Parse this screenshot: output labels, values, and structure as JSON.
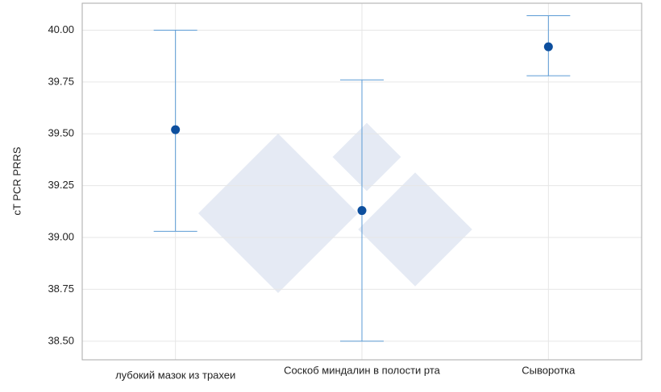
{
  "chart_data": {
    "type": "errorbar",
    "y_label": "cT PCR PRRS",
    "categories": [
      "лубокий мазок из трахеи",
      "Соскоб миндалин в полости рта",
      "Сыворотка"
    ],
    "values": [
      39.52,
      39.13,
      39.92
    ],
    "lower": [
      39.03,
      38.5,
      39.78
    ],
    "upper": [
      40.0,
      39.76,
      40.07
    ],
    "color": "#0d4f9e",
    "error_color": "#5b9bd5",
    "ylim": [
      38.41,
      40.13
    ],
    "yticks": [
      {
        "value": 38.5,
        "label": "38.50"
      },
      {
        "value": 38.75,
        "label": "38.75"
      },
      {
        "value": 39,
        "label": "39.00"
      },
      {
        "value": 39.25,
        "label": "39.25"
      },
      {
        "value": 39.5,
        "label": "39.50"
      },
      {
        "value": 39.75,
        "label": "39.75"
      },
      {
        "value": 40,
        "label": "40.00"
      }
    ],
    "grid": true
  }
}
